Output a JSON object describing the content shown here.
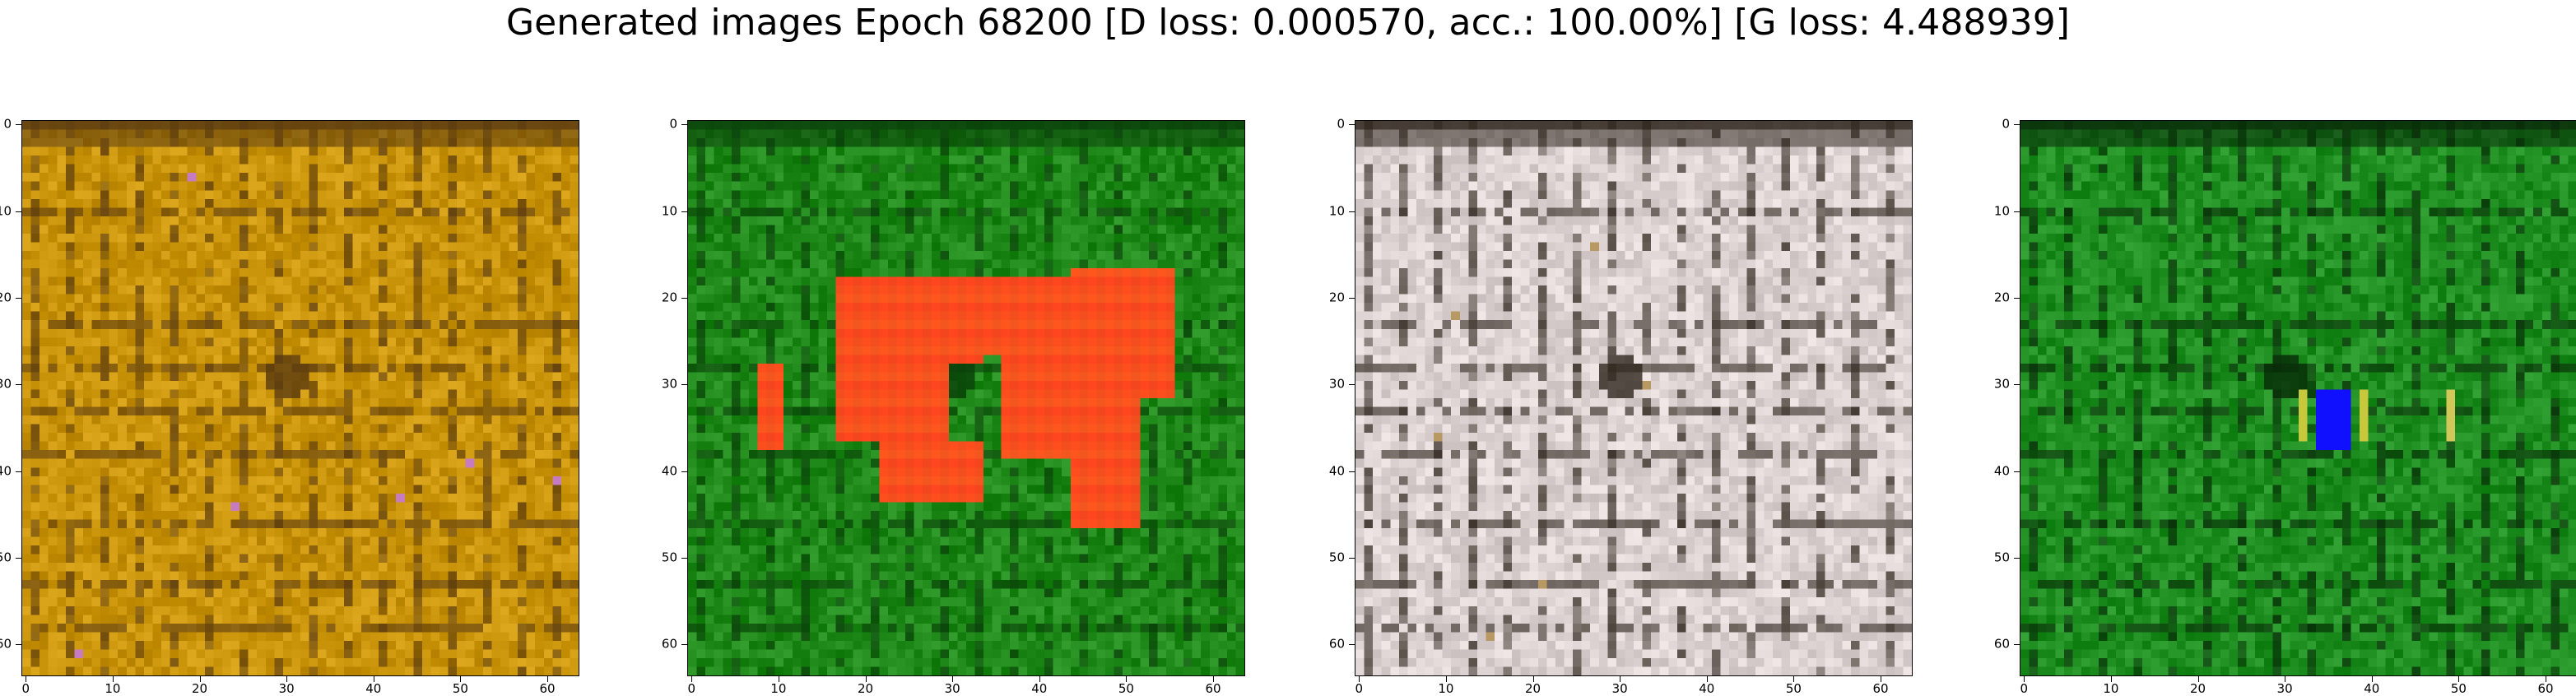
{
  "figure": {
    "title": "Generated images Epoch 68200 [D loss: 0.000570, acc.: 100.00%] [G loss: 4.488939]",
    "tick_labels": [
      "0",
      "10",
      "20",
      "30",
      "40",
      "50",
      "60"
    ]
  },
  "panels": [
    {
      "name": "image-1",
      "base_color": "#c9940a",
      "dark_color": "#5a3a10",
      "accent_color": "#c77bc0"
    },
    {
      "name": "image-2",
      "base_color": "#1f8a1a",
      "dark_color": "#0a3f0a",
      "accent_color": "#ff4a1e"
    },
    {
      "name": "image-3",
      "base_color": "#ddd3d2",
      "dark_color": "#2f261e",
      "accent_color": "#b89863"
    },
    {
      "name": "image-4",
      "base_color": "#1f8f22",
      "dark_color": "#082a08",
      "accent_color": "#1010ff"
    }
  ]
}
